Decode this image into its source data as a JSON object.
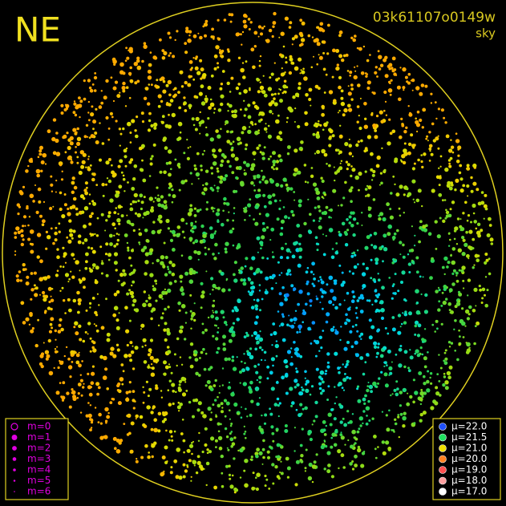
{
  "header": {
    "title": "NE",
    "frame_id": "03k61107o0149w",
    "mode": "sky"
  },
  "legend_magnitude": {
    "color": "#e000e0",
    "items": [
      "m=0",
      "m=1",
      "m=2",
      "m=3",
      "m=4",
      "m=5",
      "m=6"
    ]
  },
  "legend_brightness": {
    "items": [
      {
        "label": "μ=22.0",
        "color": "#2050ff"
      },
      {
        "label": "μ=21.5",
        "color": "#20e060"
      },
      {
        "label": "μ=21.0",
        "color": "#f0e000"
      },
      {
        "label": "μ=20.0",
        "color": "#ff8020"
      },
      {
        "label": "μ=19.0",
        "color": "#ff5050"
      },
      {
        "label": "μ=18.0",
        "color": "#ffa0a0"
      },
      {
        "label": "μ=17.0",
        "color": "#ffffff"
      }
    ]
  }
}
